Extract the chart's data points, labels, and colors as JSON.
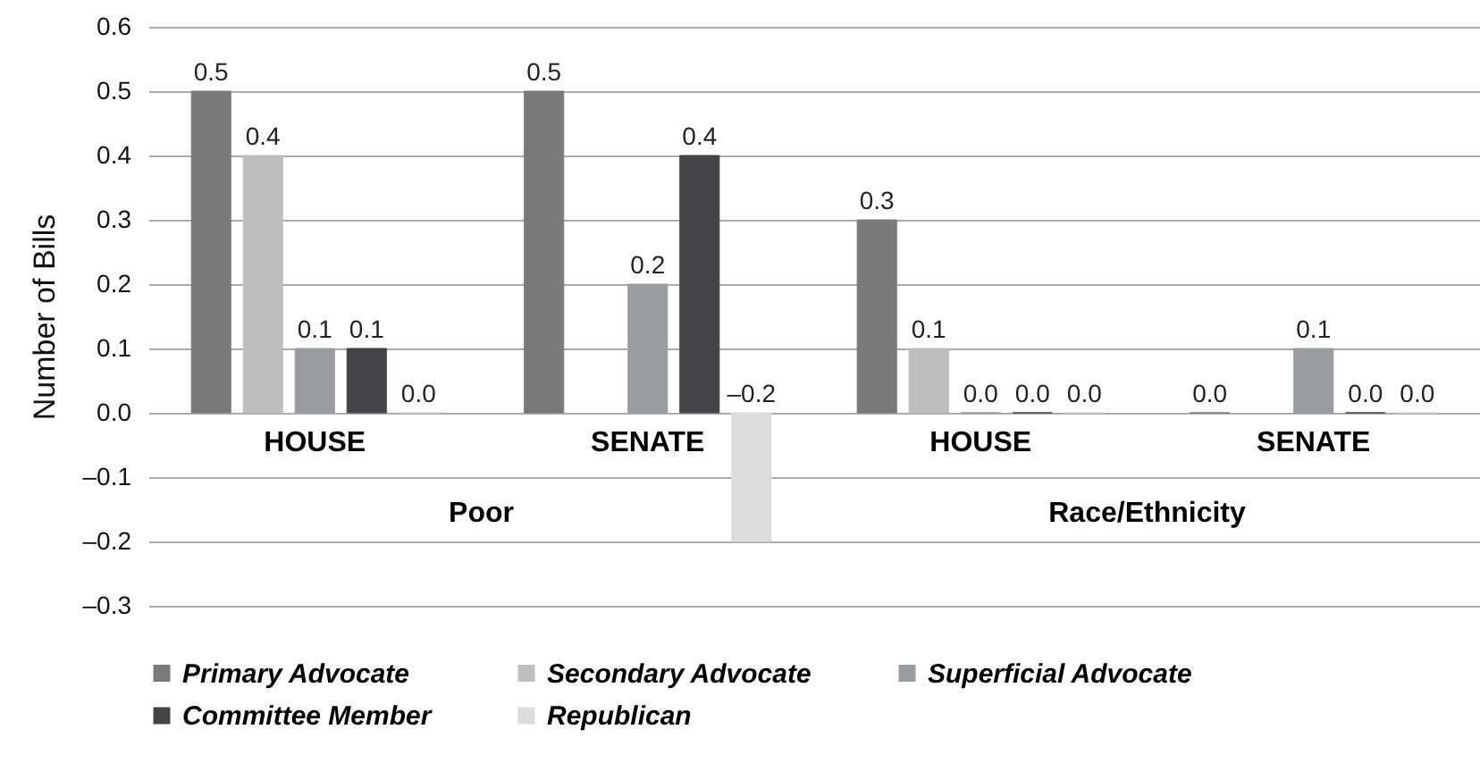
{
  "chart_data": {
    "type": "bar",
    "ylabel": "Number of Bills",
    "categories": [
      "HOUSE",
      "SENATE",
      "HOUSE",
      "SENATE"
    ],
    "annotations": [
      "Poor",
      "Race/Ethnicity"
    ],
    "series": [
      {
        "name": "Primary Advocate",
        "color": "#7a7a7a",
        "values": [
          0.5,
          0.5,
          0.3,
          0.0
        ],
        "value_labels": [
          "0.5",
          "0.5",
          "0.3",
          "0.0"
        ]
      },
      {
        "name": "Secondary Advocate",
        "color": "#bebebe",
        "values": [
          0.4,
          null,
          0.1,
          null
        ],
        "value_labels": [
          "0.4",
          null,
          "0.1",
          null
        ]
      },
      {
        "name": "Superficial Advocate",
        "color": "#9a9c9f",
        "values": [
          0.1,
          0.2,
          0.0,
          0.1
        ],
        "value_labels": [
          "0.1",
          "0.2",
          "0.0",
          "0.1"
        ]
      },
      {
        "name": "Committee Member",
        "color": "#444446",
        "values": [
          0.1,
          0.4,
          0.0,
          0.0
        ],
        "value_labels": [
          "0.1",
          "0.4",
          "0.0",
          "0.0"
        ]
      },
      {
        "name": "Republican",
        "color": "#dcdcdc",
        "values": [
          0.0,
          -0.2,
          0.0,
          0.0
        ],
        "value_labels": [
          "0.0",
          "–0.2",
          "0.0",
          "0.0"
        ]
      }
    ],
    "ylim": [
      -0.3,
      0.6
    ],
    "yticks": [
      {
        "value": -0.3,
        "label": "–0.3"
      },
      {
        "value": -0.2,
        "label": "–0.2"
      },
      {
        "value": -0.1,
        "label": "–0.1"
      },
      {
        "value": 0,
        "label": "0.0"
      },
      0.1,
      0.2,
      0.3,
      0.4,
      0.5,
      0.6
    ],
    "grid": "y",
    "legend": "bottom"
  }
}
